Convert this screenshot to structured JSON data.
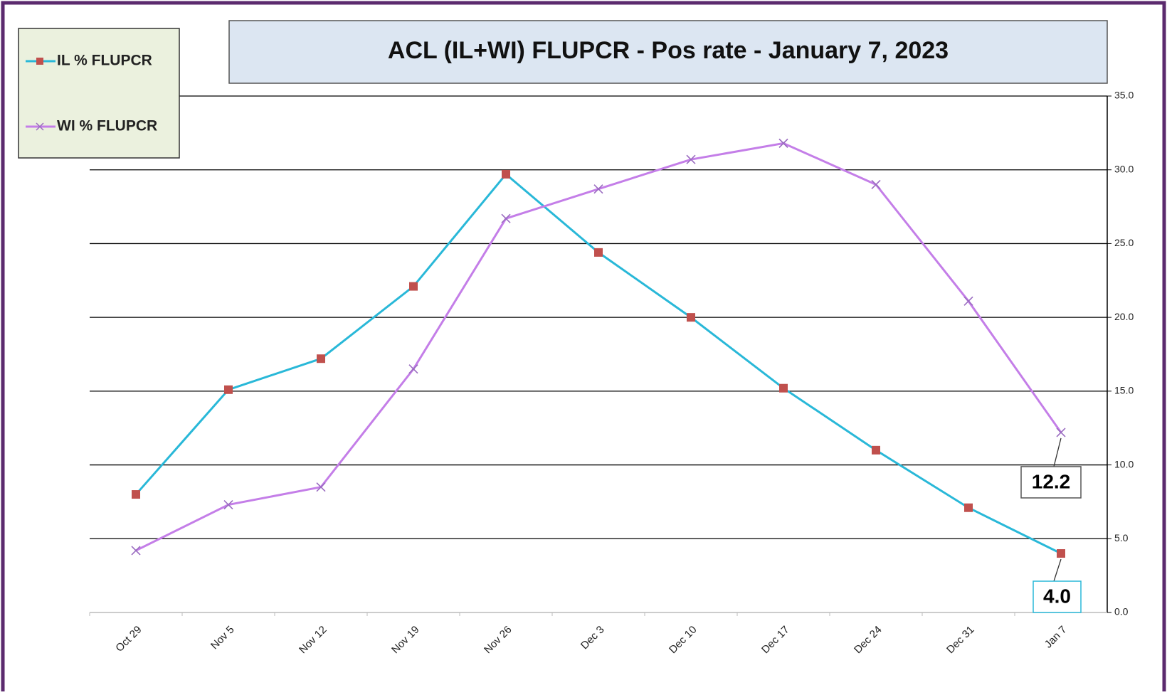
{
  "chart_data": {
    "type": "line",
    "title": "ACL (IL+WI) FLUPCR -  Pos rate  - January 7, 2023",
    "categories": [
      "Oct 29",
      "Nov 5",
      "Nov 12",
      "Nov 19",
      "Nov 26",
      "Dec 3",
      "Dec 10",
      "Dec 17",
      "Dec 24",
      "Dec 31",
      "Jan 7"
    ],
    "series": [
      {
        "name": "IL % FLUPCR",
        "color": "#29b8d8",
        "marker": "square",
        "marker_color": "#c0504d",
        "values": [
          8.0,
          15.1,
          17.2,
          22.1,
          29.7,
          24.4,
          20.0,
          15.2,
          11.0,
          7.1,
          4.0
        ],
        "value_labels": [
          null,
          null,
          null,
          null,
          null,
          null,
          null,
          null,
          null,
          null,
          "4.0"
        ],
        "label_border": "#29b8d8"
      },
      {
        "name": "WI % FLUPCR",
        "color": "#c47ee8",
        "marker": "x",
        "marker_color": "#9a6cc0",
        "values": [
          4.2,
          7.3,
          8.5,
          16.5,
          26.7,
          28.7,
          30.7,
          31.8,
          29.0,
          21.1,
          12.2
        ],
        "value_labels": [
          null,
          null,
          null,
          null,
          null,
          null,
          null,
          null,
          null,
          null,
          "12.2"
        ],
        "label_border": "#555555"
      }
    ],
    "ylim": [
      0,
      35
    ],
    "yticks": [
      {
        "value": 0,
        "label": "0.0"
      },
      {
        "value": 5,
        "label": "5.0"
      },
      {
        "value": 10,
        "label": "10.0"
      },
      {
        "value": 15,
        "label": "15.0"
      },
      {
        "value": 20,
        "label": "20.0"
      },
      {
        "value": 25,
        "label": "25.0"
      },
      {
        "value": 30,
        "label": "30.0"
      },
      {
        "value": 35,
        "label": "35.0"
      }
    ],
    "y_axis_side": "right",
    "grid": true,
    "legend": "top-left"
  }
}
